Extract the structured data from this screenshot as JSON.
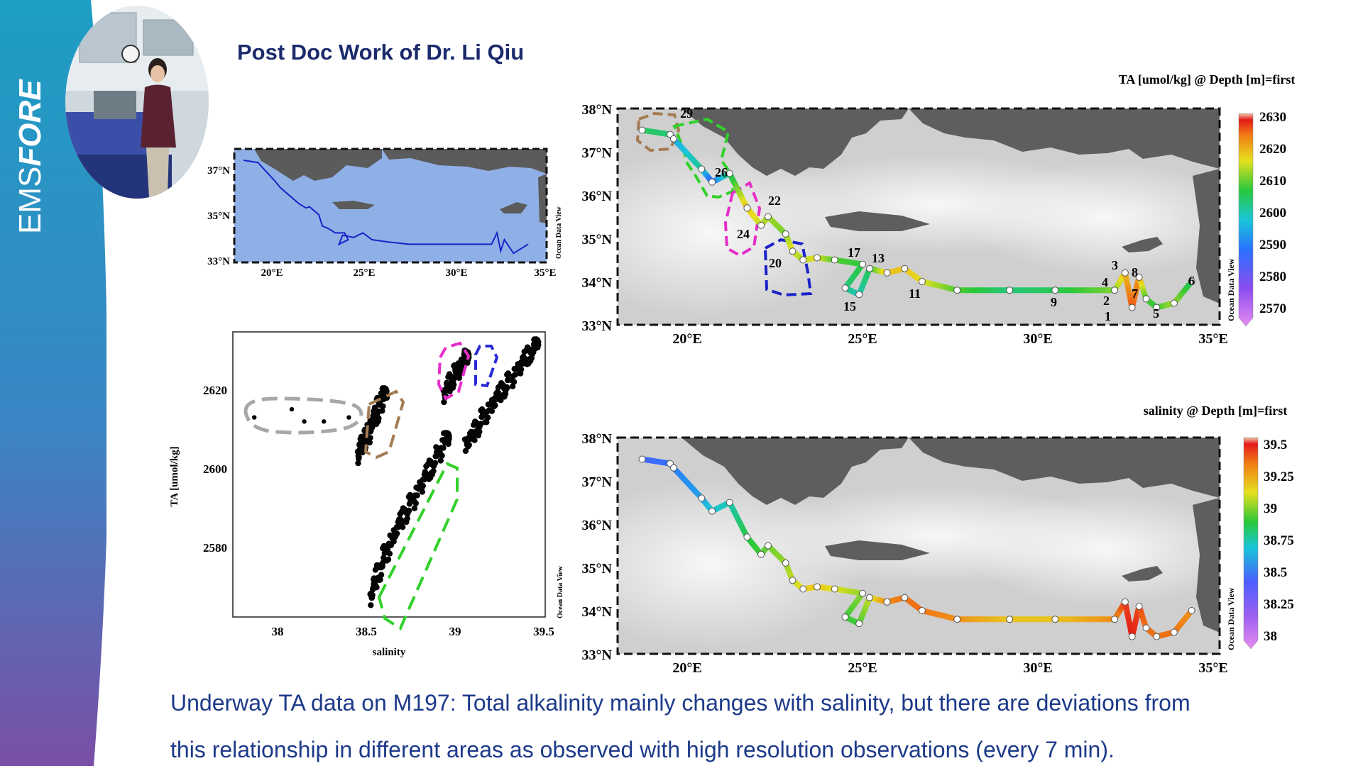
{
  "slide": {
    "brand_part1": "EMS",
    "brand_part2": "FORE",
    "title": "Post Doc Work of Dr. Li Qiu",
    "caption_line1": "Underway TA data on M197: Total alkalinity mainly changes with salinity, but there are deviations from",
    "caption_line2": "this relationship in different areas as observed with high resolution observations (every 7 min).",
    "colors": {
      "sidebar_top": "#1d9ec4",
      "sidebar_bottom": "#7a4fa6",
      "title": "#1b2a6b",
      "caption": "#1d3a8a",
      "track": "#1a22c8"
    }
  },
  "chart_data": [
    {
      "type": "line",
      "panel": "overview-map",
      "x_ticks": [
        "20°E",
        "25°E",
        "30°E",
        "35°E"
      ],
      "y_ticks": [
        "37°N",
        "35°N",
        "33°N"
      ],
      "xlim": [
        18,
        35
      ],
      "ylim": [
        33,
        38
      ],
      "watermark": "Ocean Data View",
      "series": [
        {
          "lon": [
            18.5,
            19.3,
            19.4,
            20.2,
            20.5,
            21.5,
            21.9,
            22.1,
            22.6,
            22.8,
            23.1,
            23.5,
            24.0,
            24.2,
            23.7,
            23.9,
            24.5,
            25.0,
            25.5,
            26.4,
            27.5,
            30.0,
            32.0,
            32.3,
            32.5,
            32.7,
            33.2,
            34.0
          ],
          "lat": [
            37.5,
            37.4,
            37.3,
            36.6,
            36.3,
            35.6,
            35.4,
            35.45,
            35.1,
            34.6,
            34.5,
            34.3,
            34.3,
            34.0,
            33.8,
            34.2,
            34.1,
            34.3,
            34.0,
            33.9,
            33.8,
            33.8,
            33.8,
            34.3,
            33.5,
            34.0,
            33.4,
            33.8
          ]
        }
      ]
    },
    {
      "type": "scatter",
      "panel": "ta-vs-salinity",
      "x_ticks": [
        "38",
        "38.5",
        "39",
        "39.5"
      ],
      "y_ticks": [
        "2620",
        "2600",
        "2580"
      ],
      "xlabel": "salinity",
      "ylabel": "TA [umol/kg]",
      "xlim": [
        37.75,
        39.5
      ],
      "ylim": [
        2562,
        2632
      ],
      "watermark": "Ocean Data View",
      "series": [
        {
          "name": "outliers",
          "x": [
            37.87,
            38.08,
            38.15,
            38.26,
            38.4
          ],
          "y": [
            2611,
            2613,
            2610,
            2610,
            2611
          ]
        },
        {
          "name": "brown-cluster",
          "x": [
            38.45,
            38.47,
            38.5,
            38.52,
            38.55,
            38.57,
            38.6
          ],
          "y": [
            2601,
            2604,
            2606,
            2609,
            2611,
            2614,
            2617
          ]
        },
        {
          "name": "green-cluster",
          "x": [
            38.52,
            38.55,
            38.6,
            38.65,
            38.7,
            38.75,
            38.8,
            38.85,
            38.9,
            38.95
          ],
          "y": [
            2566,
            2571,
            2577,
            2582,
            2586,
            2590,
            2594,
            2598,
            2602,
            2606
          ]
        },
        {
          "name": "magenta-cluster",
          "x": [
            38.93,
            38.96,
            39.0,
            39.03,
            39.06
          ],
          "y": [
            2616,
            2619,
            2622,
            2624,
            2626
          ]
        },
        {
          "name": "main-cluster",
          "x": [
            39.05,
            39.1,
            39.15,
            39.2,
            39.25,
            39.3,
            39.35,
            39.4,
            39.45
          ],
          "y": [
            2604,
            2607,
            2611,
            2614,
            2617,
            2620,
            2623,
            2626,
            2629
          ]
        }
      ]
    },
    {
      "type": "scatter",
      "panel": "ta-map",
      "title": "TA [umol/kg] @ Depth [m]=first",
      "x_ticks": [
        "20°E",
        "25°E",
        "30°E",
        "35°E"
      ],
      "y_ticks": [
        "38°N",
        "37°N",
        "36°N",
        "35°N",
        "34°N",
        "33°N"
      ],
      "xlim": [
        17.8,
        35
      ],
      "ylim": [
        33,
        38
      ],
      "colorbar_ticks": [
        "2630",
        "2620",
        "2610",
        "2600",
        "2590",
        "2580",
        "2570"
      ],
      "colorbar_range": [
        2565,
        2635
      ],
      "watermark": "Ocean Data View",
      "station_labels": [
        "29",
        "26",
        "24",
        "22",
        "20",
        "17",
        "13",
        "15",
        "11",
        "9",
        "3",
        "8",
        "4",
        "7",
        "2",
        "1",
        "5",
        "6"
      ],
      "track": {
        "lon": [
          18.5,
          19.3,
          19.4,
          20.2,
          20.5,
          21.0,
          21.5,
          21.9,
          22.1,
          22.6,
          22.8,
          23.1,
          23.5,
          24.0,
          24.8,
          24.3,
          24.7,
          25.0,
          25.5,
          26.0,
          26.5,
          27.5,
          29.0,
          30.3,
          32.0,
          32.3,
          32.5,
          32.7,
          32.9,
          33.2,
          33.7,
          34.2
        ],
        "lat": [
          37.5,
          37.4,
          37.3,
          36.6,
          36.3,
          36.5,
          35.7,
          35.3,
          35.5,
          35.1,
          34.7,
          34.5,
          34.55,
          34.5,
          34.4,
          33.85,
          33.7,
          34.3,
          34.2,
          34.3,
          34.0,
          33.8,
          33.8,
          33.8,
          33.8,
          34.2,
          33.4,
          34.1,
          33.6,
          33.4,
          33.5,
          34.0
        ],
        "value": [
          2608,
          2606,
          2596,
          2604,
          2588,
          2606,
          2622,
          2618,
          2616,
          2614,
          2620,
          2616,
          2620,
          2612,
          2610,
          2606,
          2602,
          2608,
          2622,
          2622,
          2620,
          2612,
          2606,
          2608,
          2614,
          2622,
          2630,
          2626,
          2612,
          2610,
          2616,
          2608
        ]
      }
    },
    {
      "type": "scatter",
      "panel": "salinity-map",
      "title": "salinity @ Depth [m]=first",
      "x_ticks": [
        "20°E",
        "25°E",
        "30°E",
        "35°E"
      ],
      "y_ticks": [
        "38°N",
        "37°N",
        "36°N",
        "35°N",
        "34°N",
        "33°N"
      ],
      "xlim": [
        17.8,
        35
      ],
      "ylim": [
        33,
        38
      ],
      "colorbar_ticks": [
        "39.5",
        "39.25",
        "39",
        "38.75",
        "38.5",
        "38.25",
        "38"
      ],
      "colorbar_range": [
        37.9,
        39.5
      ],
      "watermark": "Ocean Data View",
      "track": {
        "lon": [
          18.5,
          19.3,
          19.4,
          20.2,
          20.5,
          21.0,
          21.5,
          21.9,
          22.1,
          22.6,
          22.8,
          23.1,
          23.5,
          24.0,
          24.8,
          24.3,
          24.7,
          25.0,
          25.5,
          26.0,
          26.5,
          27.5,
          29.0,
          30.3,
          32.0,
          32.3,
          32.5,
          32.7,
          32.9,
          33.2,
          33.7,
          34.2
        ],
        "lat": [
          37.5,
          37.4,
          37.3,
          36.6,
          36.3,
          36.5,
          35.7,
          35.3,
          35.5,
          35.1,
          34.7,
          34.5,
          34.55,
          34.5,
          34.4,
          33.85,
          33.7,
          34.3,
          34.2,
          34.3,
          34.0,
          33.8,
          33.8,
          33.8,
          33.8,
          34.2,
          33.4,
          34.1,
          33.6,
          33.4,
          33.5,
          34.0
        ],
        "value": [
          38.4,
          38.45,
          38.5,
          38.6,
          38.7,
          38.75,
          38.9,
          38.95,
          39.0,
          39.05,
          39.1,
          39.15,
          39.2,
          39.15,
          39.05,
          38.95,
          38.95,
          39.1,
          39.3,
          39.35,
          39.35,
          39.3,
          39.2,
          39.2,
          39.3,
          39.4,
          39.45,
          39.4,
          39.35,
          39.35,
          39.35,
          39.3
        ]
      }
    }
  ]
}
